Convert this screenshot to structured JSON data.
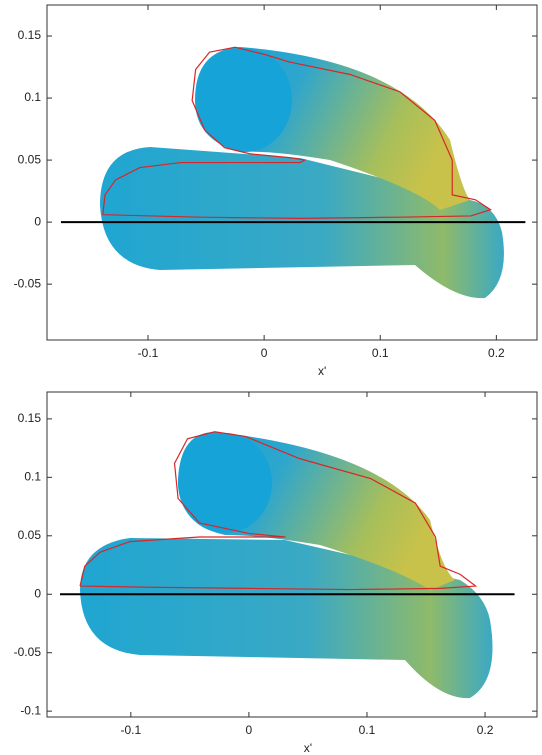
{
  "chart_data": [
    {
      "type": "line",
      "xlabel": "x'",
      "xlim": [
        -0.187,
        0.235
      ],
      "ylim": [
        -0.095,
        0.175
      ],
      "xticks": [
        -0.1,
        0,
        0.1,
        0.2
      ],
      "yticks": [
        -0.05,
        0,
        0.05,
        0.1,
        0.15
      ],
      "series": [
        {
          "color": "#d62728",
          "x": [
            -0.139,
            -0.137,
            -0.128,
            -0.107,
            -0.072,
            -0.021,
            0.031,
            0.035,
            0.022,
            -0.012,
            -0.034,
            -0.051,
            -0.062,
            -0.059,
            -0.047,
            -0.025,
            0.001,
            0.022,
            0.074,
            0.117,
            0.147,
            0.162,
            0.162,
            0.182,
            0.195,
            0.178,
            0.117,
            0.031,
            -0.055,
            -0.139
          ],
          "values": [
            0.006,
            0.022,
            0.034,
            0.044,
            0.048,
            0.048,
            0.048,
            0.05,
            0.052,
            0.055,
            0.06,
            0.074,
            0.098,
            0.123,
            0.137,
            0.141,
            0.135,
            0.129,
            0.119,
            0.105,
            0.082,
            0.05,
            0.022,
            0.018,
            0.01,
            0.005,
            0.004,
            0.003,
            0.004,
            0.006
          ]
        },
        {
          "color": "#000000",
          "x": [
            -0.175,
            0.225
          ],
          "values": [
            0,
            0
          ]
        }
      ]
    },
    {
      "type": "line",
      "xlabel": "x'",
      "xlim": [
        -0.171,
        0.244
      ],
      "ylim": [
        -0.105,
        0.173
      ],
      "xticks": [
        -0.1,
        0,
        0.1,
        0.2
      ],
      "yticks": [
        -0.1,
        -0.05,
        0,
        0.05,
        0.1,
        0.15
      ],
      "series": [
        {
          "color": "#d62728",
          "x": [
            -0.143,
            -0.139,
            -0.126,
            -0.101,
            -0.042,
            0.031,
            0,
            -0.042,
            -0.06,
            -0.063,
            -0.052,
            -0.029,
            -0.003,
            0.043,
            0.103,
            0.141,
            0.158,
            0.162,
            0.179,
            0.192,
            0.162,
            0.086,
            0.001,
            -0.084,
            -0.143
          ],
          "values": [
            0.007,
            0.024,
            0.036,
            0.045,
            0.049,
            0.049,
            0.052,
            0.061,
            0.082,
            0.112,
            0.133,
            0.139,
            0.135,
            0.116,
            0.099,
            0.078,
            0.049,
            0.024,
            0.017,
            0.007,
            0.005,
            0.004,
            0.005,
            0.006,
            0.007
          ]
        },
        {
          "color": "#000000",
          "x": [
            -0.16,
            0.225
          ],
          "values": [
            0,
            0
          ]
        }
      ]
    }
  ]
}
